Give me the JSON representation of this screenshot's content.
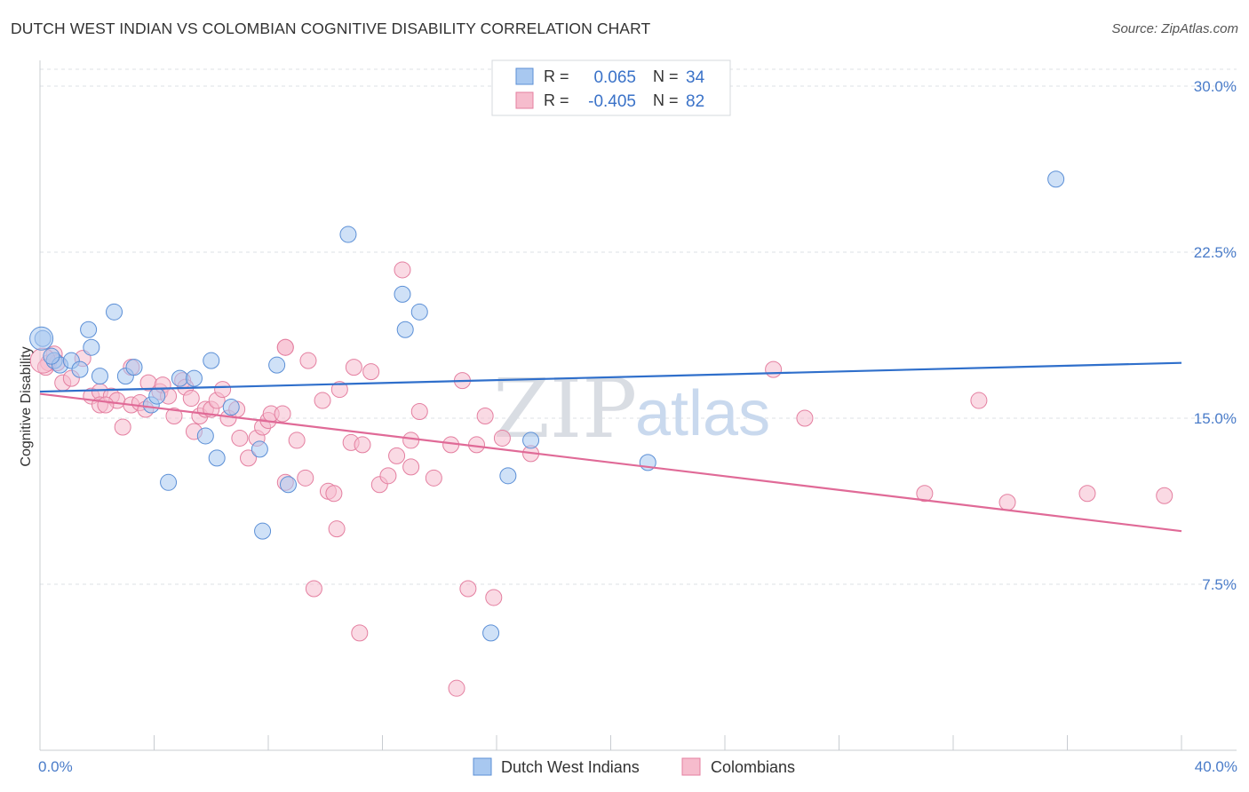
{
  "title": "DUTCH WEST INDIAN VS COLOMBIAN COGNITIVE DISABILITY CORRELATION CHART",
  "source": "Source: ZipAtlas.com",
  "watermark": {
    "zip": "ZIP",
    "atlas": "atlas"
  },
  "legend_top": [
    {
      "r_label": "R =",
      "r_value": "0.065",
      "n_label": "N =",
      "n_value": "34"
    },
    {
      "r_label": "R =",
      "r_value": "-0.405",
      "n_label": "N =",
      "n_value": "82"
    }
  ],
  "legend_bottom": [
    "Dutch West Indians",
    "Colombians"
  ],
  "colors": {
    "blue_fill": "#a8c8f0",
    "blue_stroke": "#5b8fd6",
    "blue_line": "#2f6fcb",
    "pink_fill": "#f6bccd",
    "pink_stroke": "#e47fa0",
    "pink_line": "#e06a97",
    "grid": "#dde1e6",
    "tick_text": "#4a7cc9"
  },
  "chart_data": {
    "type": "scatter",
    "title": "DUTCH WEST INDIAN VS COLOMBIAN COGNITIVE DISABILITY CORRELATION CHART",
    "xlabel": "",
    "ylabel": "Cognitive Disability",
    "xlim": [
      0,
      40
    ],
    "ylim": [
      0,
      31
    ],
    "x_tick_labels": [
      "0.0%",
      "40.0%"
    ],
    "y_ticks": [
      7.5,
      15.0,
      22.5,
      30.0
    ],
    "y_tick_labels": [
      "7.5%",
      "15.0%",
      "22.5%",
      "30.0%"
    ],
    "grid": true,
    "legend_placement": "top-center",
    "series": [
      {
        "name": "Dutch West Indians",
        "r": 0.065,
        "n": 34,
        "trend": {
          "x": [
            0,
            40
          ],
          "y": [
            16.2,
            17.5
          ]
        },
        "points": [
          [
            0.1,
            18.6
          ],
          [
            0.5,
            17.6
          ],
          [
            0.7,
            17.4
          ],
          [
            1.1,
            17.6
          ],
          [
            1.4,
            17.2
          ],
          [
            1.7,
            19.0
          ],
          [
            1.8,
            18.2
          ],
          [
            2.6,
            19.8
          ],
          [
            2.1,
            16.9
          ],
          [
            3.0,
            16.9
          ],
          [
            3.3,
            17.3
          ],
          [
            3.9,
            15.6
          ],
          [
            4.1,
            16.0
          ],
          [
            4.5,
            12.1
          ],
          [
            4.9,
            16.8
          ],
          [
            5.4,
            16.8
          ],
          [
            5.8,
            14.2
          ],
          [
            6.0,
            17.6
          ],
          [
            6.2,
            13.2
          ],
          [
            6.7,
            15.5
          ],
          [
            7.7,
            13.6
          ],
          [
            8.3,
            17.4
          ],
          [
            8.7,
            12.0
          ],
          [
            7.8,
            9.9
          ],
          [
            10.8,
            23.3
          ],
          [
            12.7,
            20.6
          ],
          [
            12.8,
            19.0
          ],
          [
            13.3,
            19.8
          ],
          [
            15.8,
            5.3
          ],
          [
            16.4,
            12.4
          ],
          [
            17.2,
            14.0
          ],
          [
            21.3,
            13.0
          ],
          [
            35.6,
            25.8
          ],
          [
            0.4,
            17.8
          ]
        ]
      },
      {
        "name": "Colombians",
        "r": -0.405,
        "n": 82,
        "trend": {
          "x": [
            0,
            40
          ],
          "y": [
            16.1,
            9.9
          ]
        },
        "points": [
          [
            0.3,
            17.5
          ],
          [
            0.5,
            17.9
          ],
          [
            0.8,
            16.6
          ],
          [
            1.1,
            16.8
          ],
          [
            1.5,
            17.7
          ],
          [
            1.8,
            16.0
          ],
          [
            2.1,
            16.2
          ],
          [
            2.1,
            15.6
          ],
          [
            2.5,
            16.0
          ],
          [
            2.7,
            15.8
          ],
          [
            2.9,
            14.6
          ],
          [
            3.2,
            17.3
          ],
          [
            3.2,
            15.6
          ],
          [
            3.5,
            15.7
          ],
          [
            3.7,
            15.4
          ],
          [
            3.8,
            16.6
          ],
          [
            4.2,
            16.2
          ],
          [
            4.3,
            16.5
          ],
          [
            4.5,
            16.0
          ],
          [
            4.7,
            15.1
          ],
          [
            5.0,
            16.7
          ],
          [
            5.1,
            16.4
          ],
          [
            5.3,
            15.9
          ],
          [
            5.4,
            14.4
          ],
          [
            5.6,
            15.1
          ],
          [
            5.8,
            15.4
          ],
          [
            6.0,
            15.4
          ],
          [
            6.2,
            15.8
          ],
          [
            6.4,
            16.3
          ],
          [
            6.6,
            15.0
          ],
          [
            6.9,
            15.4
          ],
          [
            7.0,
            14.1
          ],
          [
            7.3,
            13.2
          ],
          [
            7.6,
            14.1
          ],
          [
            7.8,
            14.6
          ],
          [
            8.0,
            14.9
          ],
          [
            8.1,
            15.2
          ],
          [
            8.5,
            15.2
          ],
          [
            8.6,
            12.1
          ],
          [
            8.6,
            18.2
          ],
          [
            9.0,
            14.0
          ],
          [
            9.3,
            12.3
          ],
          [
            9.4,
            17.6
          ],
          [
            9.9,
            15.8
          ],
          [
            10.1,
            11.7
          ],
          [
            10.3,
            11.6
          ],
          [
            10.5,
            16.3
          ],
          [
            10.9,
            13.9
          ],
          [
            11.0,
            17.3
          ],
          [
            11.3,
            13.8
          ],
          [
            11.6,
            17.1
          ],
          [
            11.9,
            12.0
          ],
          [
            12.2,
            12.4
          ],
          [
            12.5,
            13.3
          ],
          [
            12.7,
            21.7
          ],
          [
            13.0,
            14.0
          ],
          [
            13.0,
            12.8
          ],
          [
            13.3,
            15.3
          ],
          [
            13.8,
            12.3
          ],
          [
            14.4,
            13.8
          ],
          [
            14.8,
            16.7
          ],
          [
            15.3,
            13.8
          ],
          [
            15.6,
            15.1
          ],
          [
            16.2,
            14.1
          ],
          [
            17.2,
            13.4
          ],
          [
            25.7,
            17.2
          ],
          [
            26.8,
            15.0
          ],
          [
            31.0,
            11.6
          ],
          [
            33.9,
            11.2
          ],
          [
            36.7,
            11.6
          ],
          [
            39.4,
            11.5
          ],
          [
            10.4,
            10.0
          ],
          [
            9.6,
            7.3
          ],
          [
            15.0,
            7.3
          ],
          [
            15.9,
            6.9
          ],
          [
            11.2,
            5.3
          ],
          [
            14.6,
            2.8
          ],
          [
            32.9,
            15.8
          ],
          [
            0.2,
            17.3
          ],
          [
            0.6,
            17.5
          ],
          [
            2.3,
            15.6
          ],
          [
            8.6,
            18.2
          ]
        ]
      }
    ]
  }
}
